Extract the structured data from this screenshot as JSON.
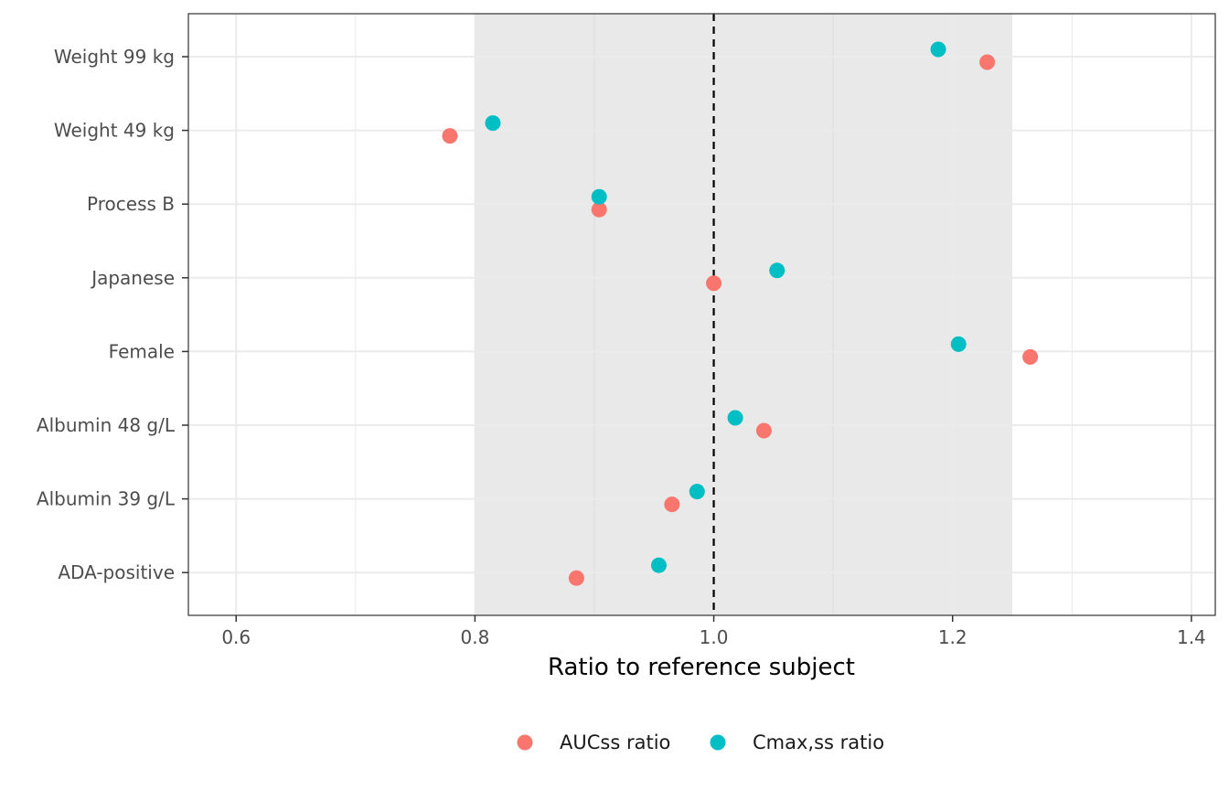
{
  "chart_data": {
    "type": "scatter",
    "title": "",
    "xlabel": "Ratio to reference subject",
    "ylabel": "",
    "xlim": [
      0.56,
      1.42
    ],
    "x_ticks": [
      {
        "value": 0.6,
        "label": "0.6"
      },
      {
        "value": 0.8,
        "label": "0.8"
      },
      {
        "value": 1.0,
        "label": "1.0"
      },
      {
        "value": 1.2,
        "label": "1.2"
      },
      {
        "value": 1.4,
        "label": "1.4"
      }
    ],
    "reference_line": 1.0,
    "shaded_band": [
      0.8,
      1.25
    ],
    "categories": [
      "Weight 99 kg",
      "Weight 49 kg",
      "Process B",
      "Japanese",
      "Female",
      "Albumin 48 g/L",
      "Albumin 39 g/L",
      "ADA-positive"
    ],
    "series": [
      {
        "name": "AUCss ratio",
        "color": "#F8766D",
        "values": [
          1.229,
          0.779,
          0.904,
          1.0,
          1.265,
          1.042,
          0.965,
          0.885
        ]
      },
      {
        "name": "Cmax,ss ratio",
        "color": "#00BFC4",
        "values": [
          1.188,
          0.815,
          0.904,
          1.053,
          1.205,
          1.018,
          0.986,
          0.954
        ]
      }
    ],
    "grid": true,
    "legend_position": "bottom"
  }
}
